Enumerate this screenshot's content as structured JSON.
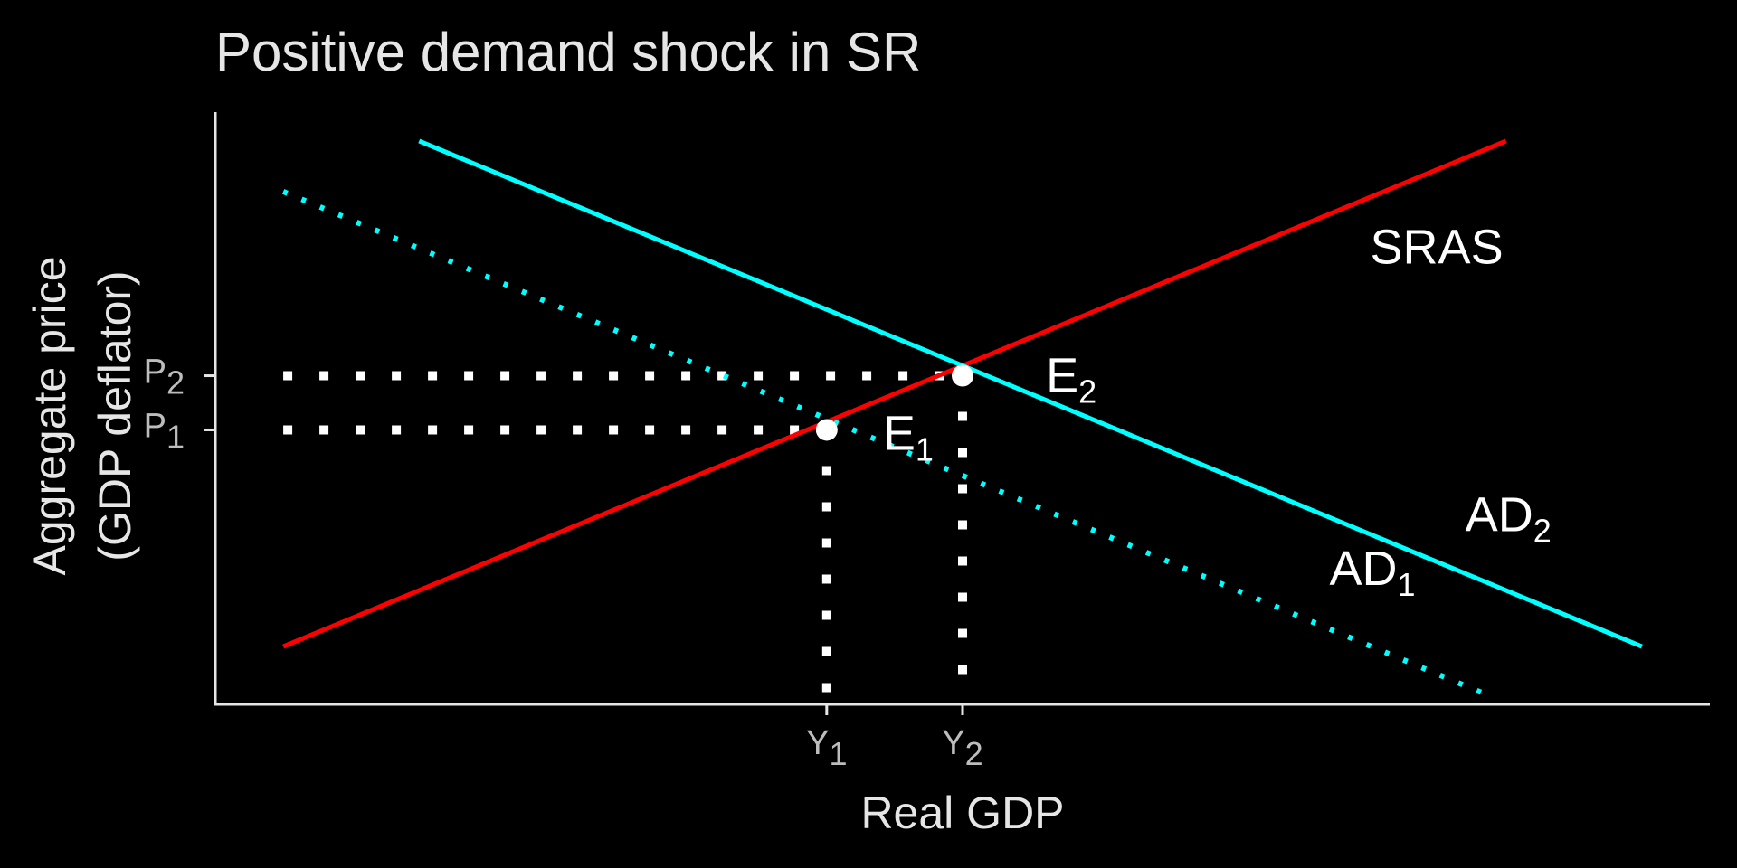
{
  "chart_data": {
    "type": "line",
    "title": "Positive demand shock in SR",
    "xlabel": "Real GDP",
    "ylabel_lines": [
      "Aggregate price",
      "(GDP deflator)"
    ],
    "xlim": [
      0,
      11
    ],
    "ylim": [
      -2.8,
      5.4
    ],
    "grid": false,
    "legend": "none",
    "x_ticks": [
      {
        "base": "Y",
        "sub": "1",
        "value": 4.5
      },
      {
        "base": "Y",
        "sub": "2",
        "value": 5.5
      }
    ],
    "y_ticks": [
      {
        "base": "P",
        "sub": "1",
        "value": 1.0
      },
      {
        "base": "P",
        "sub": "2",
        "value": 1.75
      }
    ],
    "series": [
      {
        "label_base": "SRAS",
        "label_sub": "",
        "color": "#ff0000",
        "style": "solid",
        "points": [
          {
            "x": 0.5,
            "y": -2.0
          },
          {
            "x": 9.5,
            "y": 5.0
          }
        ],
        "label_at": {
          "x": 8.5,
          "y": 3.3
        }
      },
      {
        "label_base": "AD",
        "label_sub": "1",
        "color": "#00ffff",
        "style": "dotted",
        "points": [
          {
            "x": 0.5,
            "y": 4.3
          },
          {
            "x": 9.4,
            "y": -2.7
          }
        ],
        "label_at": {
          "x": 8.2,
          "y": -1.15
        }
      },
      {
        "label_base": "AD",
        "label_sub": "2",
        "color": "#00ffff",
        "style": "solid",
        "points": [
          {
            "x": 1.5,
            "y": 5.0
          },
          {
            "x": 10.5,
            "y": -2.0
          }
        ],
        "label_at": {
          "x": 9.2,
          "y": -0.4
        }
      }
    ],
    "equilibria": [
      {
        "label_base": "E",
        "label_sub": "1",
        "x": 4.5,
        "y": 1.0,
        "label_at": {
          "x": 5.1,
          "y": 0.95
        }
      },
      {
        "label_base": "E",
        "label_sub": "2",
        "x": 5.5,
        "y": 1.75,
        "label_at": {
          "x": 6.3,
          "y": 1.75
        }
      }
    ],
    "guide_color": "#ffffff"
  }
}
